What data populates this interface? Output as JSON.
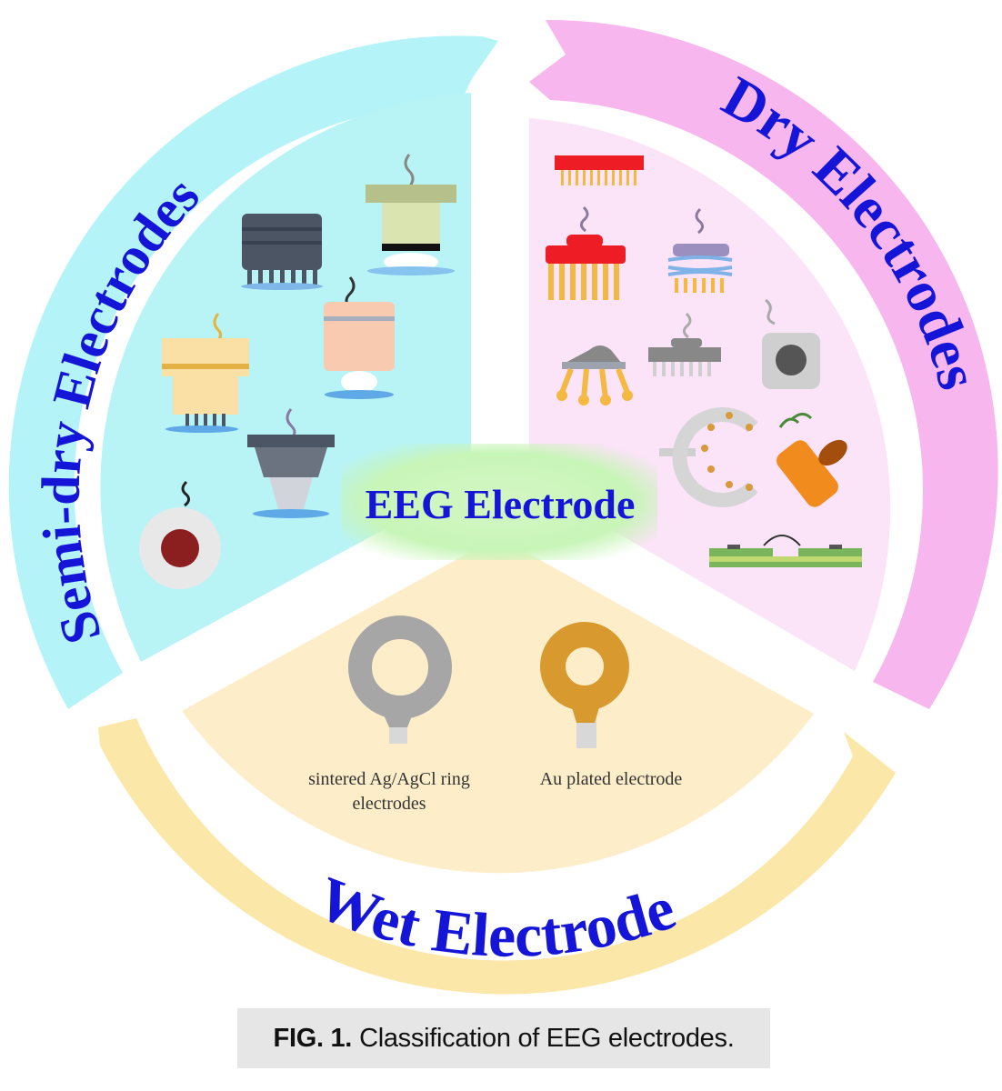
{
  "diagram": {
    "center_label": "EEG Electrode",
    "sectors": [
      {
        "id": "semi-dry",
        "title": "Semi-dry Electrodes"
      },
      {
        "id": "dry",
        "title": "Dry Electrodes"
      },
      {
        "id": "wet",
        "title": "Wet Electrode"
      }
    ],
    "wet_items": [
      {
        "label_line1": "sintered Ag/AgCl ring",
        "label_line2": "electrodes"
      },
      {
        "label_line1": "Au plated electrode"
      }
    ]
  },
  "caption": {
    "prefix": "FIG. 1.",
    "text": "Classification of EEG electrodes."
  },
  "colors": {
    "semi_dry_sector": "#b8f3f6",
    "dry_sector": "#fbe3f8",
    "wet_sector": "#fdeec9",
    "semi_dry_arrow": "#b4f4f8",
    "dry_arrow": "#f7b6ee",
    "wet_arrow": "#fbe7a8",
    "label_text": "#1515d8"
  }
}
